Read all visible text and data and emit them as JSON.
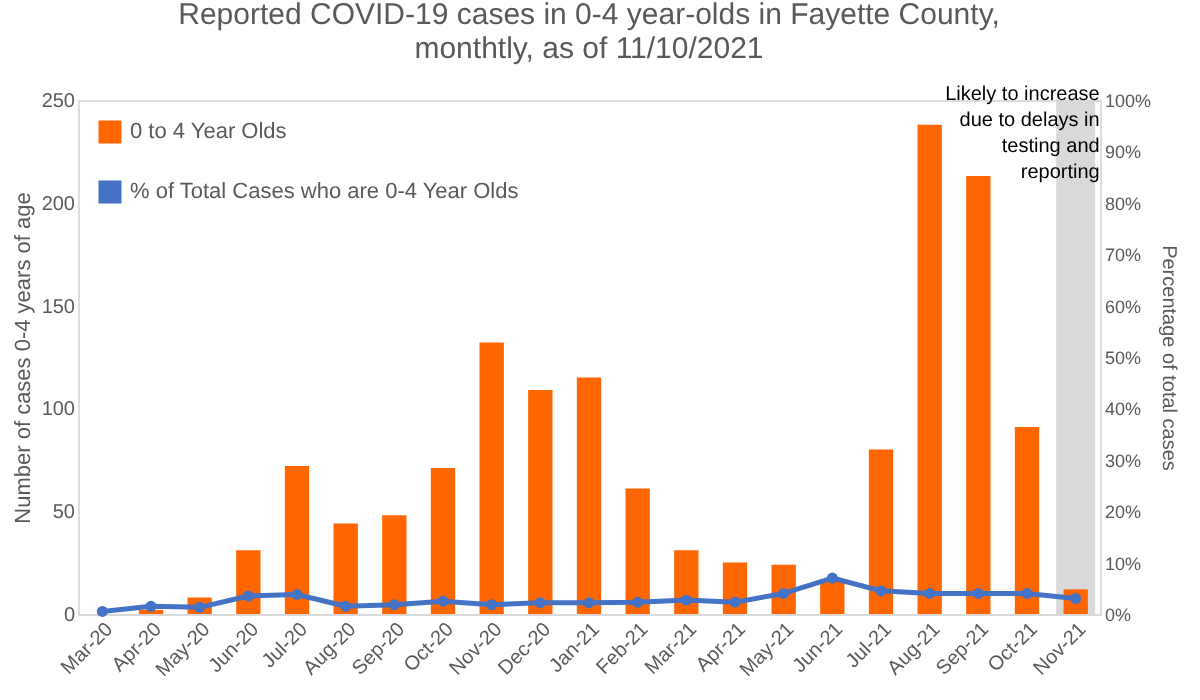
{
  "chart_data": {
    "type": "bar",
    "title": [
      "Reported COVID-19 cases in 0-4 year-olds in Fayette County,",
      "monthtly, as of 11/10/2021"
    ],
    "categories": [
      "Mar-20",
      "Apr-20",
      "May-20",
      "Jun-20",
      "Jul-20",
      "Aug-20",
      "Sep-20",
      "Oct-20",
      "Nov-20",
      "Dec-20",
      "Jan-21",
      "Feb-21",
      "Mar-21",
      "Apr-21",
      "May-21",
      "Jun-21",
      "Jul-21",
      "Aug-21",
      "Sep-21",
      "Oct-21",
      "Nov-21"
    ],
    "series": [
      {
        "name": "0 to 4 Year Olds",
        "color": "#ff6600",
        "values": [
          null,
          2,
          8,
          31,
          72,
          44,
          48,
          71,
          132,
          109,
          115,
          61,
          31,
          25,
          24,
          17,
          80,
          238,
          213,
          91,
          12
        ]
      },
      {
        "name": "% of Total Cases who are 0-4 Year Olds",
        "color": "#4472c4",
        "type": "line",
        "axis": "y2",
        "marker": "circle",
        "values": [
          0.5,
          1.5,
          1.3,
          3.5,
          3.8,
          1.5,
          1.8,
          2.5,
          1.8,
          2.2,
          2.2,
          2.3,
          2.7,
          2.3,
          4,
          7,
          4.5,
          4,
          4,
          4,
          3
        ]
      }
    ],
    "ylabel": "Number of cases 0-4 years of age",
    "y2label": "Percentage of total cases",
    "ylim": [
      0,
      250
    ],
    "yticks": [
      0,
      50,
      100,
      150,
      200,
      250
    ],
    "y2lim": [
      0,
      100
    ],
    "y2ticks": [
      {
        "value": 0,
        "label": "0%"
      },
      {
        "value": 10,
        "label": "10%"
      },
      {
        "value": 20,
        "label": "20%"
      },
      {
        "value": 30,
        "label": "30%"
      },
      {
        "value": 40,
        "label": "40%"
      },
      {
        "value": 50,
        "label": "50%"
      },
      {
        "value": 60,
        "label": "60%"
      },
      {
        "value": 70,
        "label": "70%"
      },
      {
        "value": 80,
        "label": "80%"
      },
      {
        "value": 90,
        "label": "90%"
      },
      {
        "value": 100,
        "label": "100%"
      }
    ],
    "bands": [
      {
        "axis": "x",
        "from": "Nov-21",
        "to": "Nov-21",
        "label": "Likely to increase due to delays in testing and reporting",
        "color": "#d9d9d9"
      }
    ],
    "legend": "top left",
    "grid": false
  }
}
